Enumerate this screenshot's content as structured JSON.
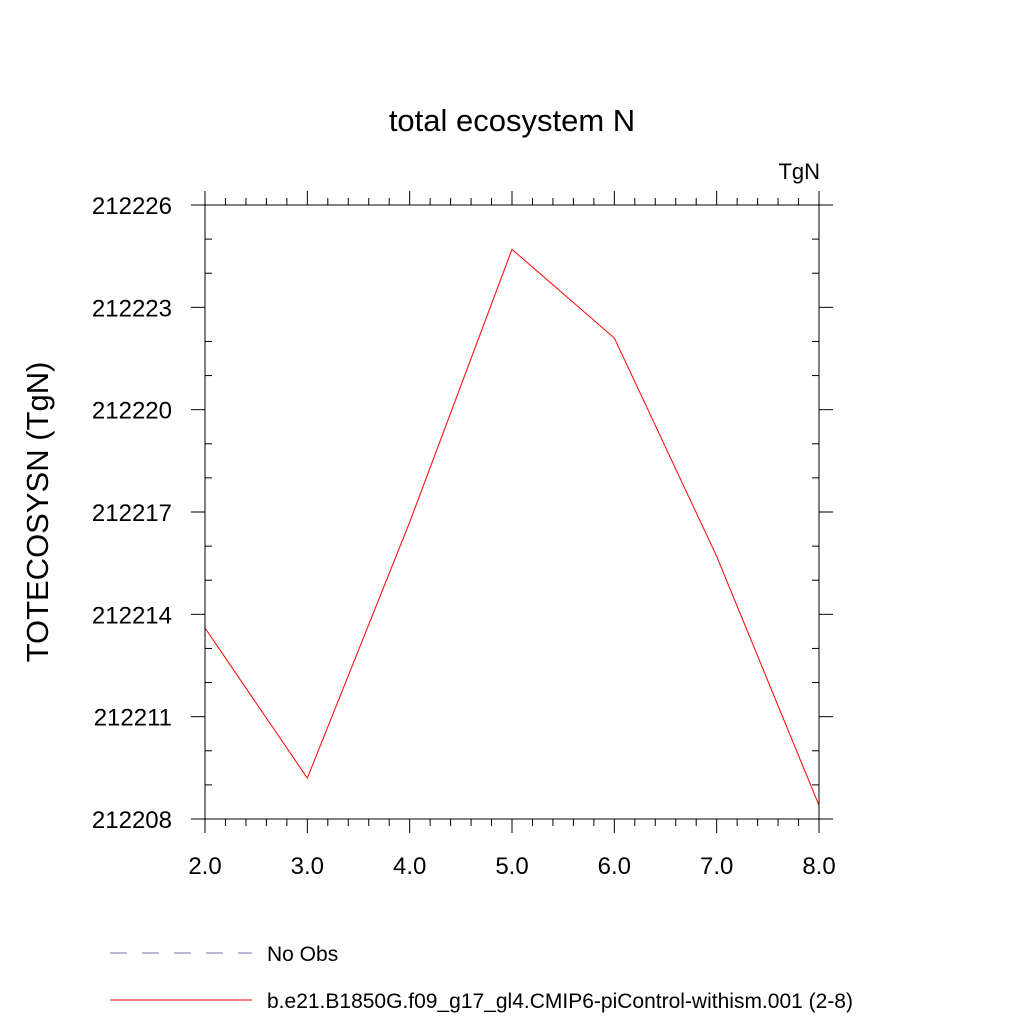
{
  "chart_data": {
    "type": "line",
    "title": "total ecosystem N",
    "units_label": "TgN",
    "xlabel": "",
    "ylabel": "TOTECOSYSN  (TgN)",
    "xlim": [
      2.0,
      8.0
    ],
    "ylim": [
      212208,
      212226
    ],
    "x_ticks": [
      "2.0",
      "3.0",
      "4.0",
      "5.0",
      "6.0",
      "7.0",
      "8.0"
    ],
    "y_ticks": [
      "212208",
      "212211",
      "212214",
      "212217",
      "212220",
      "212223",
      "212226"
    ],
    "grid": false,
    "legend_position": "bottom",
    "series": [
      {
        "name": "No Obs",
        "color": "#7b73b8",
        "style": "dashed",
        "x": [],
        "y": []
      },
      {
        "name": "b.e21.B1850G.f09_g17_gl4.CMIP6-piControl-withism.001 (2-8)",
        "color": "#ff0000",
        "style": "solid",
        "x": [
          2.0,
          3.0,
          4.0,
          5.0,
          6.0,
          7.0,
          8.0
        ],
        "y": [
          212213.6,
          212209.2,
          212216.7,
          212224.7,
          212222.1,
          212215.7,
          212208.4
        ]
      }
    ]
  }
}
